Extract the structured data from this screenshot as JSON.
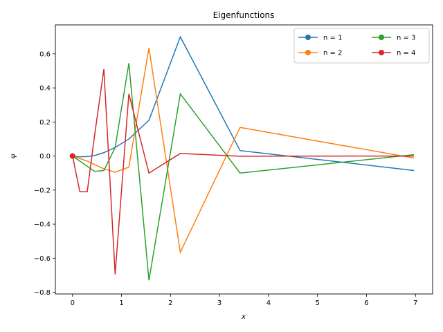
{
  "chart_data": {
    "type": "line",
    "title": "Eigenfunctions",
    "xlabel": "x",
    "ylabel": "ψ",
    "xlim": [
      -0.35,
      7.35
    ],
    "ylim": [
      -0.81,
      0.77
    ],
    "xticks": [
      0,
      1,
      2,
      3,
      4,
      5,
      6,
      7
    ],
    "yticks": [
      -0.8,
      -0.6,
      -0.4,
      -0.2,
      0.0,
      0.2,
      0.4,
      0.6
    ],
    "xtick_labels": [
      "0",
      "1",
      "2",
      "3",
      "4",
      "5",
      "6",
      "7"
    ],
    "ytick_labels": [
      "−0.8",
      "−0.6",
      "−0.4",
      "−0.2",
      "0.0",
      "0.2",
      "0.4",
      "0.6"
    ],
    "grid": false,
    "legend": {
      "placement": "top-right",
      "columns": 2
    },
    "series": [
      {
        "name": "n = 1",
        "color": "#1f77b4",
        "x": [
          0.0,
          0.15,
          0.3,
          0.45,
          0.64,
          0.87,
          1.15,
          1.56,
          2.2,
          3.42,
          6.97
        ],
        "y": [
          0.0,
          -0.005,
          -0.003,
          0.003,
          0.02,
          0.05,
          0.1,
          0.21,
          0.7,
          0.032,
          -0.085
        ]
      },
      {
        "name": "n = 2",
        "color": "#ff7f0e",
        "x": [
          0.0,
          0.15,
          0.3,
          0.45,
          0.64,
          0.87,
          1.15,
          1.56,
          2.2,
          3.42,
          6.97
        ],
        "y": [
          0.0,
          -0.015,
          -0.03,
          -0.05,
          -0.075,
          -0.095,
          -0.065,
          0.635,
          -0.565,
          0.168,
          -0.012
        ]
      },
      {
        "name": "n = 3",
        "color": "#2ca02c",
        "x": [
          0.0,
          0.15,
          0.3,
          0.45,
          0.64,
          0.87,
          1.15,
          1.56,
          2.2,
          3.42,
          6.97
        ],
        "y": [
          0.0,
          -0.03,
          -0.06,
          -0.09,
          -0.085,
          0.05,
          0.545,
          -0.73,
          0.365,
          -0.1,
          0.008
        ]
      },
      {
        "name": "n = 4",
        "color": "#d62728",
        "x": [
          0.0,
          0.15,
          0.3,
          0.45,
          0.64,
          0.87,
          1.15,
          1.56,
          2.2,
          3.42,
          6.97
        ],
        "y": [
          0.0,
          -0.21,
          -0.21,
          0.12,
          0.51,
          -0.695,
          0.365,
          -0.1,
          0.015,
          -0.001,
          0.0
        ]
      }
    ]
  }
}
